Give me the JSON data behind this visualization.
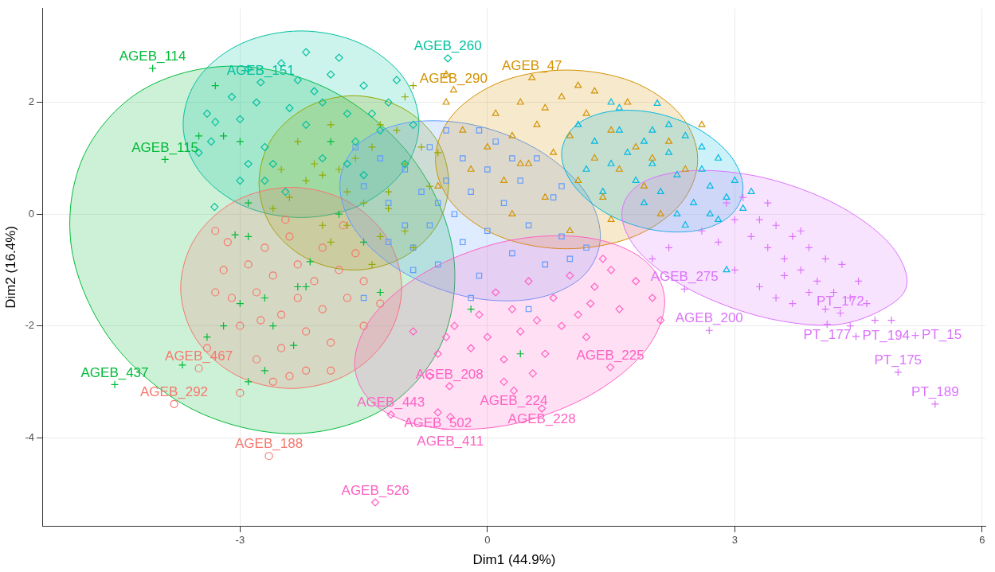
{
  "chart_data": {
    "type": "scatter",
    "xlabel": "Dim1 (44.9%)",
    "ylabel": "Dim2 (16.4%)",
    "xlim": [
      -5.39,
      6.04
    ],
    "ylim": [
      -5.58,
      3.68
    ],
    "xticks": [
      -3,
      0,
      3,
      6
    ],
    "yticks": [
      -4,
      -2,
      0,
      2
    ],
    "grid": true,
    "annotations": [
      {
        "text": "AGEB_114",
        "x": -4.06,
        "y": 2.61
      },
      {
        "text": "AGEB_115",
        "x": -3.91,
        "y": 0.98
      },
      {
        "text": "AGEB_437",
        "x": -4.52,
        "y": -3.05
      },
      {
        "text": "AGEB_151",
        "x": -2.75,
        "y": 2.36
      },
      {
        "text": "AGEB_260",
        "x": -0.48,
        "y": 2.79
      },
      {
        "text": "AGEB_467",
        "x": -3.5,
        "y": -2.76
      },
      {
        "text": "AGEB_292",
        "x": -3.8,
        "y": -3.4
      },
      {
        "text": "AGEB_188",
        "x": -2.65,
        "y": -4.33
      },
      {
        "text": "AGEB_47",
        "x": 0.54,
        "y": 2.44
      },
      {
        "text": "AGEB_290",
        "x": -0.41,
        "y": 2.22
      },
      {
        "text": "AGEB_275",
        "x": 2.39,
        "y": -1.34
      },
      {
        "text": "AGEB_200",
        "x": 2.69,
        "y": -2.08
      },
      {
        "text": "PT_172",
        "x": 4.28,
        "y": -1.77
      },
      {
        "text": "PT_177",
        "x": 4.12,
        "y": -1.97
      },
      {
        "text": "PT_194",
        "x": 4.47,
        "y": -2.19
      },
      {
        "text": "PT_15",
        "x": 5.19,
        "y": -2.17
      },
      {
        "text": "PT_175",
        "x": 4.98,
        "y": -2.83
      },
      {
        "text": "PT_189",
        "x": 5.43,
        "y": -3.4
      },
      {
        "text": "AGEB_526",
        "x": -1.36,
        "y": -5.16
      },
      {
        "text": "AGEB_443",
        "x": -1.17,
        "y": -3.59
      },
      {
        "text": "AGEB_502",
        "x": -0.6,
        "y": -3.55
      },
      {
        "text": "AGEB_411",
        "x": -0.45,
        "y": -3.63
      },
      {
        "text": "AGEB_208",
        "x": -0.46,
        "y": -3.08
      },
      {
        "text": "AGEB_224",
        "x": 0.32,
        "y": -3.16
      },
      {
        "text": "AGEB_228",
        "x": 0.66,
        "y": -3.48
      },
      {
        "text": "AGEB_225",
        "x": 1.49,
        "y": -2.74
      }
    ],
    "series": [
      {
        "type": "area",
        "color": "#00ba38",
        "x": [
          -0.42,
          -0.91,
          -1.89,
          -3.09,
          -4.2,
          -4.91,
          -5.04,
          -4.55,
          -3.58,
          -2.37,
          -1.26,
          -0.55
        ],
        "values": [
          -0.64,
          1.0,
          2.21,
          2.65,
          2.21,
          1.0,
          -0.64,
          -2.29,
          -3.49,
          -3.93,
          -3.49,
          -2.29
        ]
      },
      {
        "type": "area",
        "color": "#00c19f",
        "x": [
          -0.83,
          -1.02,
          -1.545,
          -2.26,
          -2.975,
          -3.5,
          -3.69,
          -3.5,
          -2.975,
          -2.26,
          -1.545,
          -1.02
        ],
        "values": [
          1.61,
          2.45,
          3.06,
          3.28,
          3.06,
          2.45,
          1.61,
          0.78,
          0.16,
          -0.06,
          0.16,
          0.78
        ]
      },
      {
        "type": "area",
        "color": "#93aa00",
        "x": [
          -0.47,
          -0.62,
          -1.045,
          -1.62,
          -2.195,
          -2.62,
          -2.77,
          -2.62,
          -2.195,
          -1.62,
          -1.045,
          -0.62
        ],
        "values": [
          0.56,
          1.34,
          1.91,
          2.12,
          1.91,
          1.34,
          0.56,
          -0.22,
          -0.79,
          -1.0,
          -0.79,
          -0.22
        ]
      },
      {
        "type": "area",
        "color": "#f8766d",
        "x": [
          -1.04,
          -1.22,
          -1.71,
          -2.38,
          -3.05,
          -3.54,
          -3.72,
          -3.54,
          -3.05,
          -2.38,
          -1.71,
          -1.22
        ],
        "values": [
          -1.32,
          -0.42,
          0.24,
          0.48,
          0.24,
          -0.42,
          -1.32,
          -2.22,
          -2.88,
          -3.12,
          -2.88,
          -2.22
        ]
      },
      {
        "type": "area",
        "color": "#619cff",
        "x": [
          1.37,
          1.16,
          0.58,
          -0.21,
          -1.0,
          -1.58,
          -1.79,
          -1.58,
          -1.0,
          -0.21,
          0.58,
          1.16
        ],
        "values": [
          -0.39,
          0.45,
          1.18,
          1.61,
          1.63,
          1.23,
          0.51,
          -0.33,
          -1.06,
          -1.49,
          -1.51,
          -1.11
        ]
      },
      {
        "type": "area",
        "color": "#d39200",
        "x": [
          2.55,
          2.34,
          1.76,
          0.96,
          0.165,
          -0.42,
          -0.63,
          -0.42,
          0.165,
          0.96,
          1.76,
          2.34
        ],
        "values": [
          0.98,
          1.78,
          2.37,
          2.58,
          2.37,
          1.78,
          0.98,
          0.18,
          -0.41,
          -0.62,
          -0.41,
          0.18
        ]
      },
      {
        "type": "area",
        "color": "#00b9e3",
        "x": [
          3.1,
          2.95,
          2.55,
          2.0,
          1.45,
          1.05,
          0.9,
          1.05,
          1.45,
          2.0,
          2.55,
          2.95
        ],
        "values": [
          0.47,
          1.04,
          1.53,
          1.82,
          1.83,
          1.56,
          1.07,
          0.51,
          0.01,
          -0.28,
          -0.29,
          -0.02
        ]
      },
      {
        "type": "area",
        "color": "#db72fb",
        "x": [
          5.09,
          4.86,
          4.225,
          3.36,
          2.495,
          1.86,
          1.63,
          1.86,
          2.495,
          3.36,
          4.225,
          4.86
        ],
        "values": [
          -1.2,
          -0.5,
          0.18,
          0.65,
          0.78,
          0.55,
          0.0,
          -0.71,
          -1.38,
          -1.85,
          -1.98,
          -1.65
        ]
      },
      {
        "type": "area",
        "color": "#ff61c3",
        "x": [
          2.15,
          1.9,
          1.21,
          0.27,
          -0.67,
          -1.36,
          -1.61,
          -1.36,
          -0.67,
          0.27,
          1.21,
          1.9
        ],
        "values": [
          -1.57,
          -0.82,
          -0.42,
          -0.47,
          -0.97,
          -1.77,
          -2.67,
          -3.42,
          -3.82,
          -3.77,
          -3.27,
          -2.47
        ]
      },
      {
        "type": "scatter",
        "color": "#00ba38",
        "marker": "cross",
        "x": [
          -4.06,
          -3.91,
          -4.52,
          -3.3,
          -3.5,
          -3.2,
          -3.0,
          -3.06,
          -2.9,
          -2.15,
          -1.5,
          -2.3,
          -3.0,
          -3.4,
          -3.2,
          -2.2,
          -2.6,
          -2.35,
          -2.7,
          -3.7,
          -2.9,
          -0.2,
          0.4,
          -1.3,
          -2.7,
          -2.9,
          -1.9,
          -1.8
        ],
        "values": [
          2.61,
          0.98,
          -3.05,
          2.3,
          1.4,
          1.4,
          1.3,
          -0.37,
          -0.4,
          -0.85,
          -0.5,
          -1.3,
          -1.6,
          -2.2,
          -2.0,
          -1.3,
          -2.0,
          -2.35,
          -2.8,
          -2.7,
          -3.0,
          -1.7,
          -2.5,
          -1.4,
          -1.5,
          0.2,
          1.3,
          0.0
        ]
      },
      {
        "type": "scatter",
        "color": "#00c19f",
        "marker": "diamond",
        "x": [
          -2.75,
          -0.48,
          -3.4,
          -3.35,
          -3.3,
          -3.1,
          -3.0,
          -2.9,
          -2.8,
          -2.7,
          -2.6,
          -2.5,
          -2.4,
          -2.3,
          -2.2,
          -2.1,
          -2.0,
          -1.9,
          -1.8,
          -1.7,
          -1.6,
          -1.5,
          -1.4,
          -1.3,
          -1.2,
          -1.1,
          -2.9,
          -3.0,
          -3.31,
          -2.7,
          -2.45,
          -1.7,
          -1.5,
          -3.5,
          -2.2,
          -2.0,
          -0.9,
          -1.0
        ],
        "values": [
          2.36,
          2.79,
          1.8,
          1.3,
          1.65,
          2.1,
          1.7,
          2.6,
          2.0,
          1.2,
          0.9,
          2.7,
          1.9,
          2.4,
          1.6,
          2.2,
          1.0,
          2.5,
          2.8,
          1.8,
          1.3,
          2.3,
          1.8,
          1.5,
          2.0,
          2.4,
          0.9,
          0.6,
          0.13,
          0.6,
          0.4,
          0.9,
          0.7,
          1.1,
          2.9,
          2.0,
          1.6,
          0.9
        ]
      },
      {
        "type": "scatter",
        "color": "#93aa00",
        "marker": "cross",
        "x": [
          -0.9,
          -1.0,
          -1.3,
          -1.4,
          -1.6,
          -1.8,
          -2.0,
          -2.2,
          -2.4,
          -2.6,
          -1.2,
          -1.0,
          -0.8,
          -1.5,
          -1.7,
          -1.9,
          -2.1,
          -1.3,
          -1.0,
          -0.7,
          -2.3,
          -1.9,
          -1.1,
          -2.5,
          -1.4,
          -0.9,
          -1.7,
          -2.0,
          -0.6,
          -1.2
        ],
        "values": [
          2.3,
          2.1,
          1.6,
          1.2,
          1.0,
          0.8,
          0.7,
          0.6,
          0.3,
          0.1,
          0.4,
          0.9,
          1.2,
          0.2,
          -0.2,
          -0.5,
          0.9,
          -0.4,
          -0.3,
          0.5,
          1.3,
          1.6,
          1.5,
          0.8,
          -0.9,
          -0.6,
          0.4,
          -0.2,
          1.1,
          0.1
        ]
      },
      {
        "type": "scatter",
        "color": "#f8766d",
        "marker": "circle",
        "x": [
          -3.5,
          -3.8,
          -2.65,
          -3.3,
          -3.2,
          -3.1,
          -3.0,
          -3.3,
          -3.4,
          -2.9,
          -2.8,
          -2.8,
          -2.7,
          -2.6,
          -2.5,
          -2.5,
          -2.4,
          -2.3,
          -2.3,
          -2.2,
          -2.2,
          -2.1,
          -2.0,
          -2.0,
          -1.9,
          -1.9,
          -1.8,
          -1.7,
          -1.6,
          -1.5,
          -1.5,
          -1.3,
          -2.6,
          -2.4,
          -3.0,
          -3.15,
          -2.75,
          -2.45,
          -1.75
        ],
        "values": [
          -2.76,
          -3.4,
          -4.33,
          -0.3,
          -1.0,
          -1.5,
          -2.0,
          -1.4,
          -2.4,
          -0.9,
          -1.4,
          -2.6,
          -0.6,
          -1.1,
          -1.8,
          -2.4,
          -0.4,
          -0.9,
          -1.5,
          -2.1,
          -2.8,
          -1.2,
          -1.7,
          -0.6,
          -2.3,
          -2.8,
          -1.0,
          -1.5,
          -0.7,
          -1.2,
          -2.0,
          -1.6,
          -3.0,
          -2.9,
          -3.2,
          -0.5,
          -1.9,
          -0.1,
          -0.2
        ]
      },
      {
        "type": "scatter",
        "color": "#619cff",
        "marker": "square",
        "x": [
          -1.5,
          -1.3,
          -1.2,
          -1.0,
          -1.0,
          -0.9,
          -0.8,
          -0.7,
          -0.7,
          -0.6,
          -0.5,
          -0.5,
          -0.4,
          -0.3,
          -0.3,
          -0.2,
          -0.1,
          0.0,
          0.0,
          0.1,
          0.2,
          0.3,
          0.4,
          0.5,
          0.6,
          0.7,
          0.8,
          0.9,
          1.0,
          1.2,
          -1.5,
          -0.9,
          -0.2,
          0.5,
          -1.2,
          -0.6,
          0.3,
          -0.1,
          0.9,
          -1.6
        ],
        "values": [
          0.5,
          1.0,
          0.2,
          -0.2,
          0.8,
          -0.6,
          0.4,
          1.2,
          -0.2,
          -0.9,
          0.6,
          1.5,
          0.0,
          -0.5,
          1.0,
          0.4,
          -1.1,
          0.8,
          -0.3,
          1.3,
          0.2,
          -0.7,
          0.6,
          -0.2,
          1.0,
          -0.9,
          0.3,
          -0.4,
          -0.8,
          -0.6,
          -1.5,
          -1.0,
          -1.5,
          -1.7,
          -0.5,
          0.2,
          1.0,
          1.5,
          0.5,
          1.2
        ]
      },
      {
        "type": "scatter",
        "color": "#d39200",
        "marker": "triangle",
        "x": [
          0.54,
          -0.41,
          -0.5,
          -0.5,
          -0.3,
          -0.2,
          0.0,
          0.1,
          0.2,
          0.3,
          0.4,
          0.5,
          0.6,
          0.7,
          0.8,
          0.9,
          1.0,
          1.1,
          1.2,
          1.3,
          1.4,
          1.5,
          1.6,
          1.7,
          1.8,
          1.9,
          2.0,
          2.2,
          2.4,
          2.1,
          1.5,
          0.3,
          -0.6,
          1.1,
          0.4,
          1.0,
          2.6,
          1.3,
          0.7
        ],
        "values": [
          2.44,
          2.22,
          2.5,
          2.0,
          1.5,
          0.8,
          1.2,
          1.8,
          0.6,
          1.4,
          2.0,
          0.9,
          1.6,
          0.3,
          1.1,
          2.1,
          1.4,
          0.6,
          1.8,
          1.0,
          0.3,
          1.5,
          0.8,
          2.0,
          1.2,
          0.5,
          1.0,
          1.3,
          0.8,
          0.0,
          -0.1,
          0.0,
          0.5,
          2.3,
          0.9,
          -0.3,
          1.6,
          2.2,
          1.9
        ]
      },
      {
        "type": "scatter",
        "color": "#00b9e3",
        "marker": "triangle",
        "x": [
          2.06,
          1.5,
          1.1,
          1.3,
          1.5,
          1.6,
          1.7,
          1.8,
          1.9,
          2.0,
          2.1,
          2.2,
          2.3,
          2.4,
          2.5,
          2.6,
          2.7,
          2.8,
          2.9,
          3.0,
          2.7,
          2.4,
          1.9,
          1.4,
          2.2,
          1.6,
          3.1,
          2.8,
          2.0,
          2.6,
          2.9,
          1.2,
          2.3,
          3.2
        ],
        "values": [
          1.98,
          2.0,
          1.6,
          1.3,
          0.9,
          1.5,
          1.1,
          0.6,
          1.3,
          0.9,
          0.4,
          1.1,
          0.7,
          1.4,
          0.2,
          0.8,
          0.5,
          1.0,
          0.3,
          0.6,
          0.0,
          -0.2,
          0.2,
          0.4,
          1.6,
          1.9,
          0.1,
          -0.1,
          1.5,
          1.2,
          -1.0,
          0.8,
          0.0,
          0.4
        ]
      },
      {
        "type": "scatter",
        "color": "#db72fb",
        "marker": "cross",
        "x": [
          2.39,
          2.69,
          4.28,
          4.12,
          4.47,
          5.19,
          4.98,
          5.43,
          2.9,
          3.0,
          3.1,
          3.2,
          3.3,
          3.4,
          3.5,
          3.6,
          3.7,
          3.8,
          3.9,
          4.0,
          4.1,
          4.2,
          4.3,
          4.4,
          4.5,
          4.6,
          4.7,
          3.3,
          3.5,
          3.7,
          3.9,
          4.1,
          2.8,
          2.6,
          2.2,
          2.0,
          3.0,
          3.6,
          4.4,
          4.9,
          3.4,
          3.8
        ],
        "values": [
          -1.34,
          -2.08,
          -1.77,
          -1.97,
          -2.19,
          -2.17,
          -2.83,
          -3.4,
          0.2,
          -0.1,
          0.3,
          -0.4,
          -0.1,
          -0.6,
          -0.2,
          -0.8,
          -0.4,
          -1.0,
          -0.6,
          -1.2,
          -0.8,
          -1.4,
          -0.9,
          -1.5,
          -1.2,
          -1.6,
          -1.9,
          -1.3,
          -1.5,
          -1.6,
          -1.4,
          -1.7,
          -0.5,
          -0.3,
          -0.6,
          -0.8,
          -1.0,
          -1.1,
          -2.0,
          -1.9,
          0.2,
          -0.3
        ]
      },
      {
        "type": "scatter",
        "color": "#ff61c3",
        "marker": "diamond",
        "x": [
          -1.36,
          -1.17,
          -0.6,
          -0.45,
          -0.46,
          0.32,
          0.66,
          1.49,
          -0.7,
          -0.6,
          -0.5,
          -0.4,
          -0.2,
          -0.1,
          0.0,
          0.1,
          0.2,
          0.3,
          0.4,
          0.5,
          0.6,
          0.7,
          0.8,
          0.9,
          1.0,
          1.1,
          1.2,
          1.3,
          1.5,
          1.6,
          1.8,
          2.0,
          2.1,
          1.4,
          0.2,
          -0.9,
          0.55,
          1.25
        ],
        "values": [
          -5.16,
          -3.59,
          -3.55,
          -3.63,
          -3.08,
          -3.16,
          -3.48,
          -2.74,
          -2.9,
          -2.5,
          -2.2,
          -2.0,
          -2.4,
          -1.8,
          -2.2,
          -1.4,
          -2.6,
          -1.7,
          -2.1,
          -1.2,
          -1.9,
          -2.5,
          -1.5,
          -2.0,
          -1.1,
          -1.8,
          -2.2,
          -1.3,
          -1.0,
          -1.7,
          -1.2,
          -1.5,
          -1.9,
          -0.8,
          -3.0,
          -2.1,
          -2.85,
          -1.6
        ]
      }
    ]
  }
}
